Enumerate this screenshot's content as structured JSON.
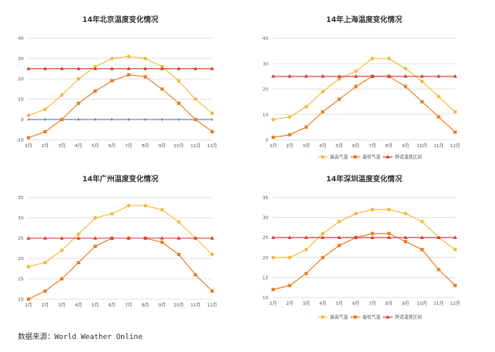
{
  "source": "数据来源：World Weather Online",
  "colors": {
    "high": "#F5BB3C",
    "low": "#EF7C1F",
    "comfort": "#D9403A",
    "zero": "#4472C4",
    "grid": "#D9D9D9",
    "axis": "#999999",
    "text": "#595959"
  },
  "chart_data": [
    {
      "type": "line",
      "title": "14年北京温度变化情况",
      "categories": [
        "1月",
        "2月",
        "3月",
        "4月",
        "5月",
        "6月",
        "7月",
        "8月",
        "9月",
        "10月",
        "11月",
        "12月"
      ],
      "ylim": [
        -10,
        40
      ],
      "yticks": [
        "-10",
        "0",
        "10",
        "20",
        "30",
        "40"
      ],
      "grid": true,
      "legend": "none",
      "series": [
        {
          "key": "high",
          "values": [
            2,
            5,
            12,
            20,
            26,
            30,
            31,
            30,
            26,
            19,
            10,
            3
          ]
        },
        {
          "key": "low",
          "values": [
            -9,
            -6,
            0,
            8,
            14,
            19,
            22,
            21,
            15,
            8,
            0,
            -6
          ]
        },
        {
          "key": "comfort",
          "values": [
            25,
            25,
            25,
            25,
            25,
            25,
            25,
            25,
            25,
            25,
            25,
            25
          ]
        }
      ]
    },
    {
      "type": "line",
      "title": "14年上海温度变化情况",
      "categories": [
        "1月",
        "2月",
        "3月",
        "4月",
        "5月",
        "6月",
        "7月",
        "8月",
        "9月",
        "10月",
        "11月",
        "12月"
      ],
      "ylim": [
        0,
        40
      ],
      "yticks": [
        "0",
        "10",
        "20",
        "30",
        "40"
      ],
      "grid": true,
      "legend": "bottom",
      "legend_labels": [
        "最高气温",
        "最低气温",
        "舒适温度区间"
      ],
      "series": [
        {
          "key": "high",
          "values": [
            8,
            9,
            13,
            19,
            24,
            27,
            32,
            32,
            28,
            23,
            17,
            11
          ]
        },
        {
          "key": "low",
          "values": [
            1,
            2,
            5,
            11,
            16,
            21,
            25,
            25,
            21,
            15,
            9,
            3
          ]
        },
        {
          "key": "comfort",
          "values": [
            25,
            25,
            25,
            25,
            25,
            25,
            25,
            25,
            25,
            25,
            25,
            25
          ]
        }
      ]
    },
    {
      "type": "line",
      "title": "14年广州温度变化情况",
      "categories": [
        "1月",
        "2月",
        "3月",
        "4月",
        "5月",
        "6月",
        "7月",
        "8月",
        "9月",
        "10月",
        "11月",
        "12月"
      ],
      "ylim": [
        10,
        35
      ],
      "yticks": [
        "10",
        "15",
        "20",
        "25",
        "30",
        "35"
      ],
      "grid": true,
      "legend": "none",
      "series": [
        {
          "key": "high",
          "values": [
            18,
            19,
            22,
            26,
            30,
            31,
            33,
            33,
            32,
            29,
            25,
            21
          ]
        },
        {
          "key": "low",
          "values": [
            10,
            12,
            15,
            19,
            23,
            25,
            25,
            25,
            24,
            21,
            16,
            12
          ]
        },
        {
          "key": "comfort",
          "values": [
            25,
            25,
            25,
            25,
            25,
            25,
            25,
            25,
            25,
            25,
            25,
            25
          ]
        }
      ]
    },
    {
      "type": "line",
      "title": "14年深圳温度变化情况",
      "categories": [
        "1月",
        "2月",
        "3月",
        "4月",
        "5月",
        "6月",
        "7月",
        "8月",
        "9月",
        "10月",
        "11月",
        "12月"
      ],
      "ylim": [
        10,
        35
      ],
      "yticks": [
        "10",
        "15",
        "20",
        "25",
        "30",
        "35"
      ],
      "grid": true,
      "legend": "bottom",
      "legend_labels": [
        "最高气温",
        "最低气温",
        "舒适温度区间"
      ],
      "series": [
        {
          "key": "high",
          "values": [
            20,
            20,
            22,
            26,
            29,
            31,
            32,
            32,
            31,
            29,
            25,
            22
          ]
        },
        {
          "key": "low",
          "values": [
            12,
            13,
            16,
            20,
            23,
            25,
            26,
            26,
            24,
            22,
            17,
            13
          ]
        },
        {
          "key": "comfort",
          "values": [
            25,
            25,
            25,
            25,
            25,
            25,
            25,
            25,
            25,
            25,
            25,
            25
          ]
        }
      ]
    }
  ]
}
